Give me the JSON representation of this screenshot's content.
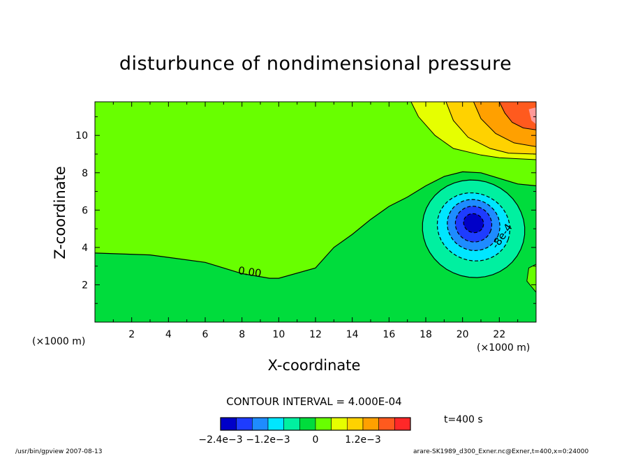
{
  "chart_data": {
    "type": "contour",
    "title": "disturbunce of nondimensional pressure",
    "xlabel": "X-coordinate",
    "ylabel": "Z-coordinate",
    "xunit": "(×1000 m)",
    "xlim": [
      0,
      24
    ],
    "ylim": [
      0,
      11.8
    ],
    "xticks": [
      2,
      4,
      6,
      8,
      10,
      12,
      14,
      16,
      18,
      20,
      22
    ],
    "yticks": [
      2,
      4,
      6,
      8,
      10
    ],
    "contour_interval": "CONTOUR INTERVAL = 4.000E-04",
    "contour_labels": [
      {
        "text": "0.00",
        "x": 8.4,
        "y": 2.5
      },
      {
        "text": "-8e-4",
        "x": 22.3,
        "y": 4.5
      }
    ],
    "features": [
      {
        "name": "low-pressure-center",
        "x": 20.6,
        "y": 5.2,
        "min_value": -0.0024
      },
      {
        "name": "high-pressure-region",
        "x": 22.5,
        "y": 11.0,
        "max_value": 0.0024
      }
    ],
    "colorbar": {
      "colors": [
        "#0000c8",
        "#1e3cff",
        "#1e8cff",
        "#00e6ff",
        "#00f0a0",
        "#00dc3c",
        "#68ff00",
        "#e6ff00",
        "#ffd200",
        "#ffa000",
        "#ff5a1e",
        "#ff2828"
      ],
      "tick_labels": [
        {
          "text": "−2.4e−3",
          "value": -0.0024
        },
        {
          "text": "−1.2e−3",
          "value": -0.0012
        },
        {
          "text": "0",
          "value": 0
        },
        {
          "text": "1.2e−3",
          "value": 0.0012
        }
      ],
      "range": [
        -0.0024,
        0.0024
      ]
    },
    "time_label": "t=400 s"
  },
  "footer": {
    "left": "/usr/bin/gpview   2007-08-13",
    "right": "arare-SK1989_d300_Exner.nc@Exner,t=400,x=0:24000"
  }
}
